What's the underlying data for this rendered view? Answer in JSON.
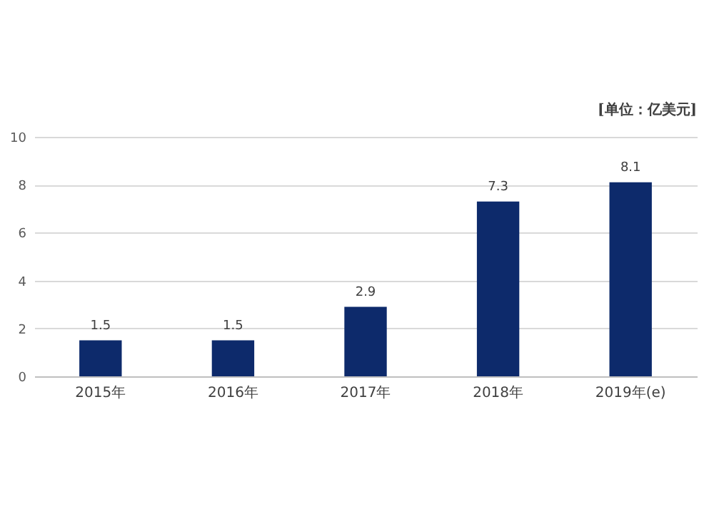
{
  "chart_data": {
    "type": "bar",
    "categories": [
      "2015年",
      "2016年",
      "2017年",
      "2018年",
      "2019年(e)"
    ],
    "values": [
      1.5,
      1.5,
      2.9,
      7.3,
      8.1
    ],
    "color": "#0d2a6b",
    "ylim": [
      0,
      10
    ],
    "yticks": [
      0,
      2,
      4,
      6,
      8,
      10
    ],
    "grid": "y",
    "data_labels": true,
    "annotations": [
      "[单位：亿美元]"
    ]
  }
}
